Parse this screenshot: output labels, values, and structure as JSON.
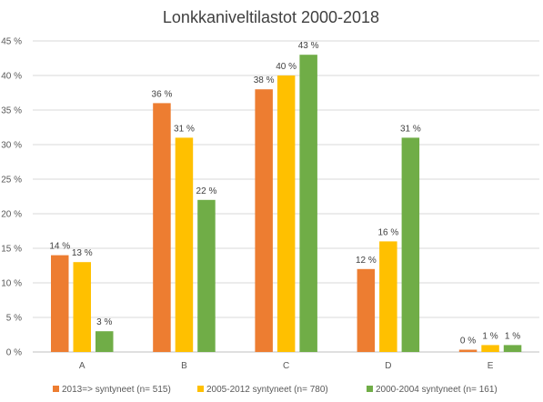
{
  "chart_data": {
    "type": "bar",
    "title": "Lonkkaniveltilastot 2000-2018",
    "categories": [
      "A",
      "B",
      "C",
      "D",
      "E"
    ],
    "series": [
      {
        "name": "2013=> syntyneet (n= 515)",
        "color": "#ED7D31",
        "values": [
          14,
          36,
          38,
          12,
          0
        ],
        "labels": [
          "14 %",
          "36 %",
          "38 %",
          "12 %",
          "0 %"
        ]
      },
      {
        "name": "2005-2012 syntyneet (n= 780)",
        "color": "#FFC000",
        "values": [
          13,
          31,
          40,
          16,
          1
        ],
        "labels": [
          "13 %",
          "31 %",
          "40 %",
          "16 %",
          "1 %"
        ]
      },
      {
        "name": "2000-2004 syntyneet (n= 161)",
        "color": "#70AD47",
        "values": [
          3,
          22,
          43,
          31,
          1
        ],
        "labels": [
          "3 %",
          "22 %",
          "43 %",
          "31 %",
          "1 %"
        ]
      }
    ],
    "ylim": [
      0,
      45
    ],
    "yticks": [
      "0 %",
      "5 %",
      "10 %",
      "15 %",
      "20 %",
      "25 %",
      "30 %",
      "35 %",
      "40 %",
      "45 %"
    ],
    "grid": true,
    "legend_position": "bottom"
  }
}
